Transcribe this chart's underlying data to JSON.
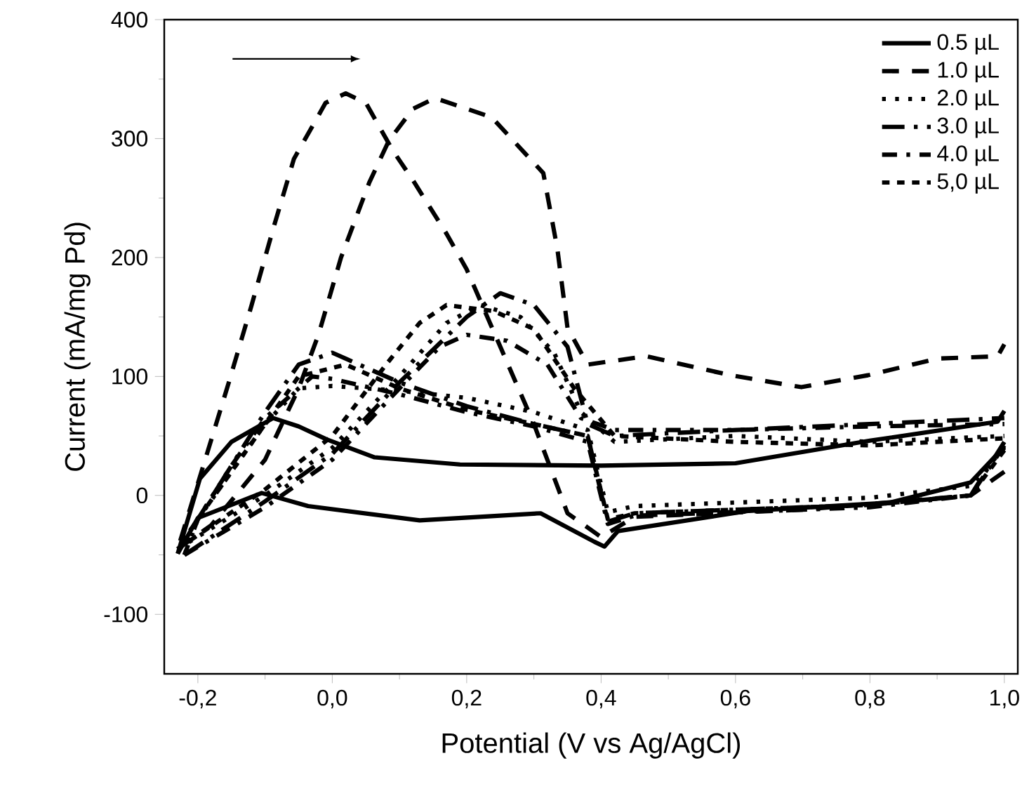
{
  "chart_data": {
    "type": "line",
    "xlabel": "Potential (V vs Ag/AgCl)",
    "ylabel": "Current (mA/mg Pd)",
    "xlim": [
      -0.25,
      1.02
    ],
    "ylim": [
      -150,
      400
    ],
    "xticks": [
      {
        "value": -0.2,
        "label": "-0,2"
      },
      {
        "value": 0.0,
        "label": "0,0"
      },
      {
        "value": 0.2,
        "label": "0,2"
      },
      {
        "value": 0.4,
        "label": "0,4"
      },
      {
        "value": 0.6,
        "label": "0,6"
      },
      {
        "value": 0.8,
        "label": "0,8"
      },
      {
        "value": 1.0,
        "label": "1,0"
      }
    ],
    "yticks": [
      -100,
      0,
      100,
      200,
      300,
      400
    ],
    "grid": false,
    "legend": "top right",
    "marker": "none",
    "series": [
      {
        "name": "0.5 µL",
        "color": "#000000",
        "line_style": "solid",
        "x": [
          -0.23,
          -0.197,
          -0.15,
          -0.088,
          -0.05,
          -0.008,
          0.063,
          0.19,
          0.4,
          0.6,
          0.8,
          0.99,
          1.0
        ],
        "values": [
          -49,
          14,
          45,
          65,
          58,
          47,
          32,
          26,
          25,
          27,
          46,
          62,
          71
        ]
      },
      {
        "color": "#000000",
        "line_style": "solid",
        "x": [
          1.0,
          0.95,
          0.83,
          0.62,
          0.425,
          0.405,
          0.39,
          0.31,
          0.13,
          -0.036,
          -0.105,
          -0.2,
          -0.23
        ],
        "values": [
          41,
          11,
          -6,
          -13,
          -30,
          -43,
          -39,
          -15,
          -21,
          -9,
          2,
          -19,
          -49
        ]
      },
      {
        "name": "1.0 µL",
        "color": "#000000",
        "line_style": "dashed",
        "x": [
          -0.23,
          -0.18,
          -0.1,
          -0.05,
          -0.02,
          0.013,
          0.055,
          0.084,
          0.12,
          0.153,
          0.237,
          0.314,
          0.335,
          0.35,
          0.38,
          0.467,
          0.593,
          0.698,
          0.797,
          0.9,
          0.99,
          1.0
        ],
        "values": [
          -45,
          -25,
          30,
          90,
          136,
          200,
          263,
          298,
          325,
          334,
          318,
          271,
          207,
          141,
          110,
          117,
          101,
          91,
          101,
          115,
          117,
          127
        ]
      },
      {
        "color": "#000000",
        "line_style": "dashed",
        "x": [
          1.0,
          0.95,
          0.7,
          0.45,
          0.4,
          0.35,
          0.3,
          0.2,
          0.17,
          0.12,
          0.09,
          0.05,
          0.02,
          -0.01,
          -0.057,
          -0.088,
          -0.12,
          -0.155,
          -0.2,
          -0.23
        ],
        "values": [
          20,
          0,
          -12,
          -18,
          -35,
          -15,
          60,
          190,
          220,
          265,
          290,
          330,
          338,
          330,
          283,
          224,
          160,
          93,
          10,
          -45
        ]
      },
      {
        "name": "2.0 µL",
        "color": "#000000",
        "line_style": "dotted",
        "x": [
          -0.23,
          -0.1,
          0.0,
          0.1,
          0.17,
          0.22,
          0.28,
          0.33,
          0.37,
          0.42,
          0.6,
          0.8,
          1.0
        ],
        "values": [
          -45,
          0,
          40,
          100,
          145,
          160,
          150,
          120,
          70,
          45,
          50,
          45,
          50
        ]
      },
      {
        "color": "#000000",
        "line_style": "dotted",
        "x": [
          1.0,
          0.95,
          0.8,
          0.6,
          0.45,
          0.41,
          0.38,
          0.3,
          0.2,
          0.1,
          0.0,
          -0.05,
          -0.1,
          -0.15,
          -0.2,
          -0.23
        ],
        "values": [
          40,
          8,
          -2,
          -6,
          -9,
          -14,
          55,
          70,
          82,
          88,
          92,
          90,
          60,
          20,
          -20,
          -45
        ]
      },
      {
        "name": "3.0 µL",
        "color": "#000000",
        "line_style": "dashdot",
        "x": [
          -0.22,
          -0.1,
          0.0,
          0.1,
          0.2,
          0.25,
          0.3,
          0.35,
          0.38,
          0.42,
          0.6,
          0.8,
          1.0
        ],
        "values": [
          -50,
          -5,
          35,
          95,
          150,
          170,
          160,
          125,
          60,
          50,
          55,
          60,
          65
        ]
      },
      {
        "color": "#000000",
        "line_style": "dashdot",
        "x": [
          1.0,
          0.95,
          0.8,
          0.6,
          0.45,
          0.41,
          0.38,
          0.3,
          0.2,
          0.1,
          0.0,
          -0.05,
          -0.1,
          -0.15,
          -0.2,
          -0.22
        ],
        "values": [
          45,
          0,
          -8,
          -12,
          -15,
          -22,
          50,
          60,
          75,
          95,
          120,
          110,
          70,
          25,
          -20,
          -50
        ]
      },
      {
        "name": "4.0 µL",
        "color": "#000000",
        "line_style": "long dashdot",
        "x": [
          -0.22,
          -0.1,
          0.0,
          0.1,
          0.16,
          0.2,
          0.26,
          0.32,
          0.37,
          0.42,
          0.6,
          0.8,
          1.0
        ],
        "values": [
          -50,
          -10,
          30,
          90,
          125,
          135,
          130,
          110,
          65,
          55,
          55,
          58,
          60
        ]
      },
      {
        "color": "#000000",
        "line_style": "long dashdot",
        "x": [
          1.0,
          0.95,
          0.8,
          0.6,
          0.45,
          0.41,
          0.38,
          0.3,
          0.2,
          0.1,
          0.0,
          -0.03,
          -0.1,
          -0.15,
          -0.2,
          -0.22
        ],
        "values": [
          42,
          0,
          -10,
          -14,
          -17,
          -24,
          45,
          58,
          70,
          85,
          98,
          100,
          65,
          25,
          -20,
          -50
        ]
      },
      {
        "name": "5,0 µL",
        "color": "#000000",
        "line_style": "short dashed",
        "x": [
          -0.23,
          -0.1,
          0.0,
          0.08,
          0.13,
          0.17,
          0.24,
          0.3,
          0.36,
          0.42,
          0.6,
          0.8,
          1.0
        ],
        "values": [
          -45,
          5,
          50,
          110,
          145,
          160,
          155,
          140,
          90,
          50,
          45,
          42,
          48
        ]
      },
      {
        "color": "#000000",
        "line_style": "short dashed",
        "x": [
          1.0,
          0.95,
          0.8,
          0.6,
          0.45,
          0.41,
          0.38,
          0.3,
          0.2,
          0.1,
          0.02,
          -0.05,
          -0.1,
          -0.15,
          -0.2,
          -0.23
        ],
        "values": [
          38,
          0,
          -8,
          -12,
          -15,
          -20,
          50,
          60,
          72,
          90,
          110,
          100,
          60,
          20,
          -20,
          -45
        ]
      }
    ]
  }
}
